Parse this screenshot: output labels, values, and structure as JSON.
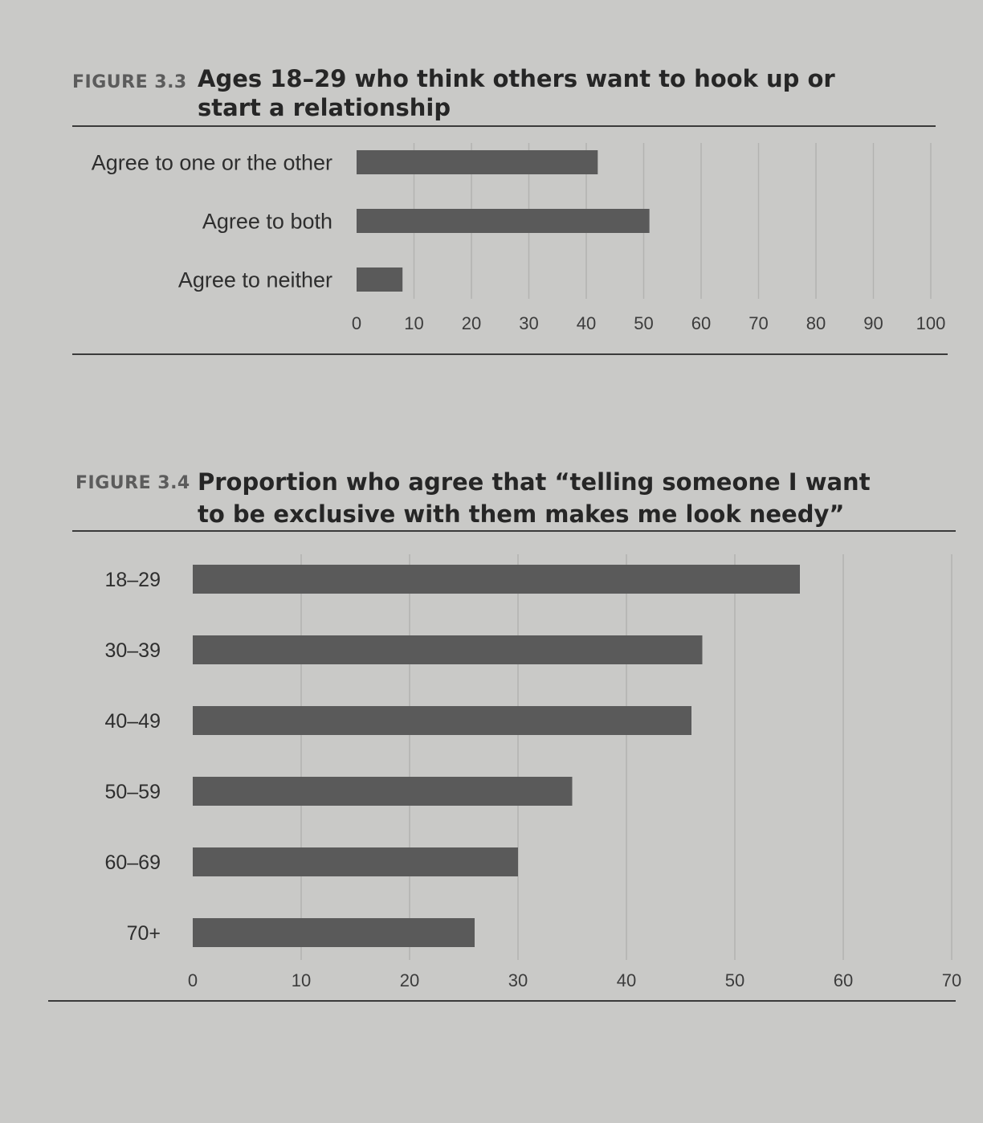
{
  "figure_3_3": {
    "label": "FIGURE 3.3",
    "title_line1": "Ages 18–29 who think others want to hook up or",
    "title_line2": "start a relationship"
  },
  "figure_3_4": {
    "label": "FIGURE 3.4",
    "title_line1": "Proportion who agree that “telling someone I want",
    "title_line2": "to be exclusive with them makes me look needy”"
  },
  "chart_data": [
    {
      "type": "bar",
      "orientation": "horizontal",
      "title": "Ages 18–29 who think others want to hook up or start a relationship",
      "categories": [
        "Agree to one or the other",
        "Agree to both",
        "Agree to neither"
      ],
      "values": [
        42,
        51,
        8
      ],
      "xlim": [
        0,
        100
      ],
      "xticks": [
        0,
        10,
        20,
        30,
        40,
        50,
        60,
        70,
        80,
        90,
        100
      ],
      "grid": true,
      "bar_color": "#5a5a5a"
    },
    {
      "type": "bar",
      "orientation": "horizontal",
      "title": "Proportion who agree that “telling someone I want to be exclusive with them makes me look needy”",
      "categories": [
        "18–29",
        "30–39",
        "40–49",
        "50–59",
        "60–69",
        "70+"
      ],
      "values": [
        56,
        47,
        46,
        35,
        30,
        26
      ],
      "xlim": [
        0,
        70
      ],
      "xticks": [
        0,
        10,
        20,
        30,
        40,
        50,
        60,
        70
      ],
      "grid": true,
      "bar_color": "#5a5a5a"
    }
  ]
}
